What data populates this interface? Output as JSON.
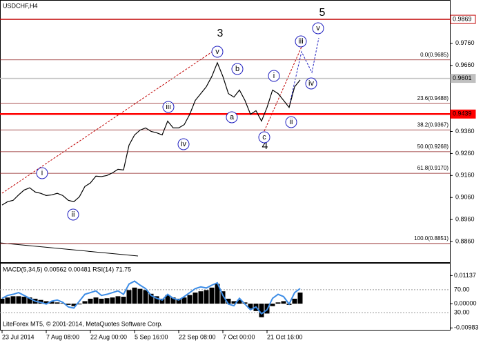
{
  "chart_data": [
    {
      "type": "line",
      "title": "USDCHF,H4",
      "color": "#000000",
      "categories": [
        "23 Jul 2014",
        null,
        null,
        null,
        null,
        null,
        null,
        null,
        "7 Aug 08:00",
        null,
        null,
        null,
        null,
        null,
        null,
        null,
        "22 Aug 00:00",
        null,
        null,
        null,
        null,
        null,
        null,
        null,
        "5 Sep 16:00",
        null,
        null,
        null,
        null,
        null,
        null,
        null,
        "22 Sep 08:00",
        null,
        null,
        null,
        null,
        null,
        null,
        null,
        "7 Oct 00:00",
        null,
        null,
        null,
        null,
        null,
        null,
        null,
        "21 Oct 16:00",
        null,
        null,
        null,
        null,
        null,
        null
      ],
      "values": [
        0.9026,
        0.9041,
        0.9047,
        0.9072,
        0.9094,
        0.9104,
        0.9085,
        0.9079,
        0.9069,
        0.9072,
        0.9079,
        0.9069,
        0.9047,
        0.9041,
        0.9063,
        0.911,
        0.9126,
        0.9157,
        0.9155,
        0.916,
        0.9172,
        0.9188,
        0.9185,
        0.9298,
        0.9344,
        0.9366,
        0.9376,
        0.936,
        0.9354,
        0.9344,
        0.9407,
        0.9376,
        0.9376,
        0.9391,
        0.9438,
        0.9501,
        0.9532,
        0.9563,
        0.961,
        0.9672,
        0.961,
        0.9532,
        0.9516,
        0.9548,
        0.9501,
        0.9438,
        0.9454,
        0.9407,
        0.9469,
        0.9548,
        0.9532,
        0.9501,
        0.9469,
        0.9563,
        0.9594
      ],
      "ylim": [
        0.87662,
        0.99538
      ],
      "yticks": [
        {
          "value": 0.976,
          "label": "0.9760"
        },
        {
          "value": 0.966,
          "label": "0.9660"
        },
        {
          "value": 0.936,
          "label": "0.9360"
        },
        {
          "value": 0.926,
          "label": "0.9260"
        },
        {
          "value": 0.916,
          "label": "0.9160"
        },
        {
          "value": 0.906,
          "label": "0.9060"
        },
        {
          "value": 0.896,
          "label": "0.8960"
        },
        {
          "value": 0.886,
          "label": "0.8860"
        }
      ],
      "levels": [
        {
          "value": 0.9869,
          "label": "0.9869",
          "color": "#c00000"
        },
        {
          "value": 0.9439,
          "label": "0.9439",
          "color": "#ff0000"
        },
        {
          "value": 0.9601,
          "label": "0.9601",
          "color": "#c0c0c0"
        }
      ],
      "fib_levels": [
        {
          "value": 0.9685,
          "label": "0.0(0.9685)"
        },
        {
          "value": 0.9488,
          "label": "23.6(0.9488)"
        },
        {
          "value": 0.9367,
          "label": "38.2(0.9367)"
        },
        {
          "value": 0.9268,
          "label": "50.0(0.9268)"
        },
        {
          "value": 0.917,
          "label": "61.8(0.9170)"
        },
        {
          "value": 0.8851,
          "label": "100.0(0.8851)"
        }
      ],
      "waves": [
        "3",
        "4",
        "5",
        "i",
        "ii",
        "iii",
        "iv",
        "v",
        "a",
        "b",
        "c",
        "i",
        "ii",
        "iii",
        "iv",
        "v"
      ]
    },
    {
      "type": "bar",
      "label": "MACD(5,34,5) 0.00562 0.00481 RSI(14) 71.75",
      "footer": "LiteForex MT5, © 2001-2014, MetaQuotes Software Corp.",
      "ylim": [
        -0.0106,
        0.0126
      ],
      "yticks": [
        0.01137,
        {
          "value": 0,
          "label": "0.00000"
        },
        -0.00983
      ],
      "y2lim": [
        0,
        100
      ],
      "y2ticks": [
        {
          "value": 70,
          "label": "70.00"
        },
        {
          "value": 30,
          "label": "30.00"
        }
      ],
      "series": [
        {
          "color": "#000000",
          "values": [
            0.002,
            0.0025,
            0.003,
            0.003,
            0.0028,
            0.0025,
            0.002,
            0.0015,
            0.001,
            0.0008,
            0.0005,
            0.0002,
            -0.0005,
            -0.001,
            -0.0003,
            0.001,
            0.002,
            0.0025,
            0.002,
            0.0022,
            0.0025,
            0.003,
            0.0028,
            0.0055,
            0.0065,
            0.006,
            0.0055,
            0.004,
            0.003,
            0.002,
            0.0035,
            0.0025,
            0.002,
            0.0025,
            0.0035,
            0.0045,
            0.005,
            0.0055,
            0.0065,
            0.008,
            0.005,
            0.002,
            0.001,
            0.0015,
            0.0005,
            -0.002,
            -0.003,
            -0.0055,
            -0.004,
            -0.001,
            0.0005,
            0.001,
            -0.0005,
            0.002,
            0.0045
          ]
        },
        {
          "color": "#3c8ce6",
          "axis": "y2",
          "values": [
            55,
            60,
            62,
            65,
            60,
            55,
            50,
            48,
            45,
            50,
            52,
            48,
            40,
            38,
            50,
            62,
            65,
            68,
            60,
            62,
            65,
            68,
            62,
            80,
            85,
            78,
            72,
            60,
            55,
            52,
            62,
            55,
            52,
            58,
            65,
            72,
            75,
            73,
            78,
            82,
            60,
            45,
            42,
            55,
            45,
            35,
            40,
            28,
            35,
            55,
            62,
            58,
            45,
            65,
            72
          ]
        }
      ]
    }
  ]
}
